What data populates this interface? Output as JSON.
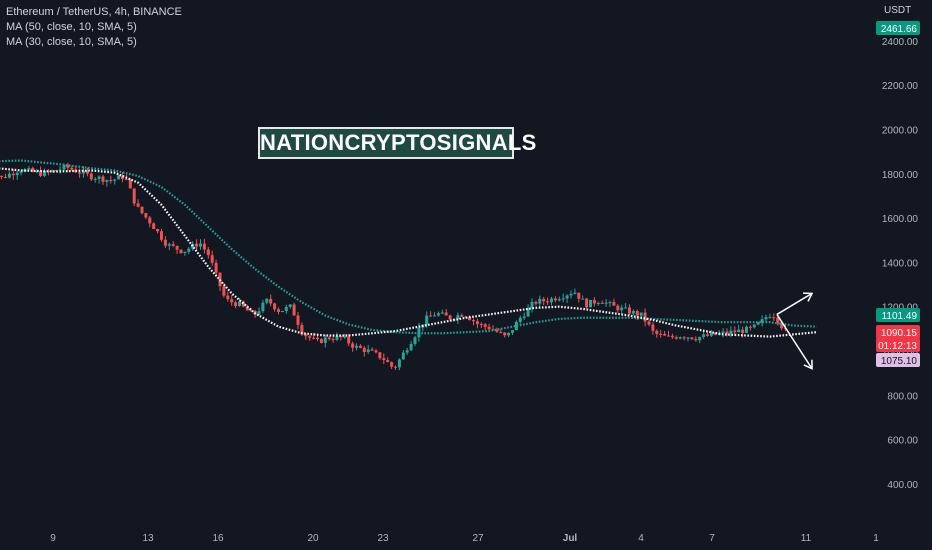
{
  "header": {
    "symbol_line": "Ethereum / TetherUS, 4h, BINANCE",
    "indicators": [
      "MA (50, close, 10, SMA, 5)",
      "MA (30, close, 10, SMA, 5)"
    ]
  },
  "watermark": "NATIONCRYPTOSIGNALS",
  "price_axis": {
    "unit": "USDT",
    "ticks": [
      "2400.00",
      "2200.00",
      "2000.00",
      "1800.00",
      "1600.00",
      "1400.00",
      "1200.00",
      "1000.00",
      "800.00",
      "600.00",
      "400.00"
    ],
    "badges": [
      {
        "label": "2461.66",
        "value": 2461.66,
        "bg": "#089981",
        "fg": "#ffffff"
      },
      {
        "label": "1101.49",
        "value": 1101.49,
        "bg": "#089981",
        "fg": "#ffffff"
      },
      {
        "label": "1090.15",
        "value": 1090.15,
        "bg": "#f23645",
        "fg": "#ffffff"
      },
      {
        "label": "01:12:13",
        "value": 1056,
        "bg": "#f23645",
        "fg": "#ffffff"
      },
      {
        "label": "1075.10",
        "value": 1023,
        "bg": "#e1bee7",
        "fg": "#131722"
      }
    ]
  },
  "time_axis": {
    "ticks": [
      "9",
      "13",
      "16",
      "20",
      "23",
      "27",
      "Jul",
      "4",
      "7",
      "11",
      "1"
    ]
  },
  "colors": {
    "background": "#131722",
    "up": "#26a69a",
    "down": "#ef5350",
    "ma50": "#26a69a",
    "ma30": "#ffffff",
    "grid": "#1e222d"
  },
  "chart_data": {
    "type": "candlestick",
    "ylim": [
      300,
      2500
    ],
    "grid": false,
    "x_start_day": 6,
    "x_end_day": 7.5,
    "candle_close_path": [
      [
        6.0,
        1860
      ],
      [
        6.8,
        1780
      ],
      [
        7.6,
        1820
      ],
      [
        8.6,
        1800
      ],
      [
        9.6,
        1830
      ],
      [
        10.6,
        1790
      ],
      [
        11.5,
        1770
      ],
      [
        12.1,
        1790
      ],
      [
        12.6,
        1650
      ],
      [
        13.2,
        1580
      ],
      [
        13.9,
        1480
      ],
      [
        14.6,
        1450
      ],
      [
        15.3,
        1490
      ],
      [
        15.7,
        1430
      ],
      [
        16.0,
        1340
      ],
      [
        16.4,
        1230
      ],
      [
        17.0,
        1210
      ],
      [
        17.6,
        1160
      ],
      [
        18.2,
        1230
      ],
      [
        18.7,
        1180
      ],
      [
        19.2,
        1200
      ],
      [
        19.7,
        1080
      ],
      [
        20.3,
        1040
      ],
      [
        20.8,
        1060
      ],
      [
        21.4,
        1060
      ],
      [
        21.9,
        1020
      ],
      [
        22.5,
        1000
      ],
      [
        23.1,
        970
      ],
      [
        23.6,
        920
      ],
      [
        24.3,
        1040
      ],
      [
        24.9,
        1140
      ],
      [
        25.4,
        1170
      ],
      [
        26.0,
        1150
      ],
      [
        26.6,
        1170
      ],
      [
        27.2,
        1120
      ],
      [
        27.8,
        1100
      ],
      [
        28.4,
        1060
      ],
      [
        29.0,
        1150
      ],
      [
        29.6,
        1220
      ],
      [
        30.2,
        1230
      ],
      [
        30.8,
        1250
      ],
      [
        31.3,
        1270
      ],
      [
        31.8,
        1210
      ],
      [
        32.4,
        1230
      ],
      [
        33.0,
        1200
      ],
      [
        33.6,
        1180
      ],
      [
        34.2,
        1160
      ],
      [
        34.7,
        1080
      ],
      [
        35.3,
        1060
      ],
      [
        35.9,
        1070
      ],
      [
        36.5,
        1060
      ],
      [
        37.1,
        1070
      ],
      [
        37.7,
        1080
      ],
      [
        38.3,
        1090
      ],
      [
        38.9,
        1100
      ],
      [
        39.3,
        1130
      ],
      [
        39.6,
        1165
      ],
      [
        39.9,
        1160
      ],
      [
        40.3,
        1090
      ]
    ],
    "ma50_path": [
      [
        6.0,
        1855
      ],
      [
        7.5,
        1860
      ],
      [
        9.0,
        1845
      ],
      [
        10.5,
        1825
      ],
      [
        11.5,
        1815
      ],
      [
        12.5,
        1790
      ],
      [
        13.5,
        1740
      ],
      [
        14.5,
        1660
      ],
      [
        15.5,
        1560
      ],
      [
        16.5,
        1460
      ],
      [
        17.5,
        1370
      ],
      [
        18.5,
        1290
      ],
      [
        19.5,
        1220
      ],
      [
        20.5,
        1160
      ],
      [
        21.5,
        1120
      ],
      [
        22.5,
        1095
      ],
      [
        23.5,
        1085
      ],
      [
        24.5,
        1080
      ],
      [
        25.5,
        1080
      ],
      [
        26.5,
        1085
      ],
      [
        27.5,
        1090
      ],
      [
        28.5,
        1110
      ],
      [
        29.5,
        1130
      ],
      [
        30.5,
        1145
      ],
      [
        31.5,
        1150
      ],
      [
        32.5,
        1150
      ],
      [
        33.5,
        1150
      ],
      [
        34.5,
        1145
      ],
      [
        35.5,
        1140
      ],
      [
        36.5,
        1135
      ],
      [
        37.5,
        1130
      ],
      [
        38.5,
        1130
      ],
      [
        39.5,
        1130
      ],
      [
        40.5,
        1115
      ],
      [
        41.5,
        1110
      ]
    ],
    "ma30_path": [
      [
        6.0,
        1830
      ],
      [
        7.5,
        1815
      ],
      [
        9.0,
        1810
      ],
      [
        10.5,
        1815
      ],
      [
        11.5,
        1805
      ],
      [
        12.5,
        1760
      ],
      [
        13.5,
        1660
      ],
      [
        14.5,
        1520
      ],
      [
        15.5,
        1380
      ],
      [
        16.5,
        1260
      ],
      [
        17.5,
        1170
      ],
      [
        18.5,
        1110
      ],
      [
        19.5,
        1080
      ],
      [
        20.5,
        1070
      ],
      [
        21.5,
        1070
      ],
      [
        22.5,
        1080
      ],
      [
        23.5,
        1090
      ],
      [
        24.5,
        1110
      ],
      [
        25.5,
        1130
      ],
      [
        26.5,
        1150
      ],
      [
        27.5,
        1165
      ],
      [
        28.5,
        1180
      ],
      [
        29.5,
        1195
      ],
      [
        30.5,
        1200
      ],
      [
        31.5,
        1190
      ],
      [
        32.5,
        1175
      ],
      [
        33.5,
        1160
      ],
      [
        34.5,
        1140
      ],
      [
        35.5,
        1115
      ],
      [
        36.5,
        1095
      ],
      [
        37.5,
        1075
      ],
      [
        38.5,
        1070
      ],
      [
        39.5,
        1065
      ],
      [
        40.5,
        1075
      ],
      [
        41.5,
        1085
      ]
    ],
    "projection": {
      "origin": [
        39.8,
        1165
      ],
      "up_target": [
        41.3,
        1260
      ],
      "down_target": [
        41.3,
        920
      ]
    }
  }
}
